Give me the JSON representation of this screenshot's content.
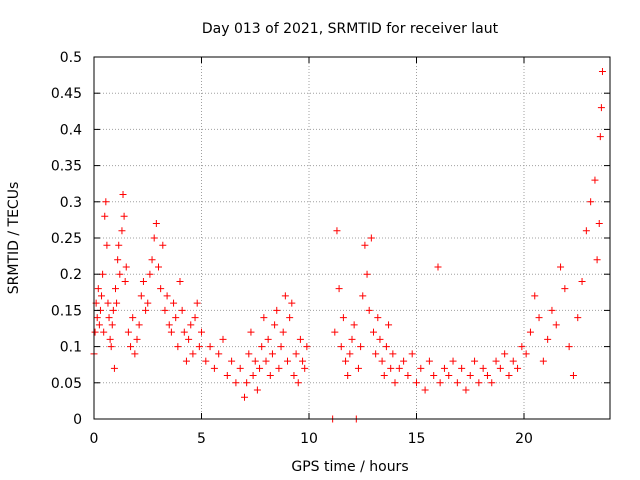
{
  "chart_data": {
    "type": "scatter",
    "title": "Day 013 of 2021, SRMTID for receiver laut",
    "xlabel": "GPS time / hours",
    "ylabel": "SRMTID / TECUs",
    "xlim": [
      0,
      24
    ],
    "ylim": [
      0,
      0.5
    ],
    "x_ticks": [
      0,
      5,
      10,
      15,
      20
    ],
    "y_ticks": [
      0,
      0.05,
      0.1,
      0.15,
      0.2,
      0.25,
      0.3,
      0.35,
      0.4,
      0.45,
      0.5
    ],
    "x_tick_labels": [
      "0",
      "5",
      "10",
      "15",
      "20"
    ],
    "y_tick_labels": [
      "0",
      "0.05",
      "0.1",
      "0.15",
      "0.2",
      "0.25",
      "0.3",
      "0.35",
      "0.4",
      "0.45",
      "0.5"
    ],
    "grid": true,
    "marker": "+",
    "color": "#ff0000",
    "series": [
      {
        "name": "SRMTID",
        "points": [
          [
            0.0,
            0.09
          ],
          [
            0.05,
            0.12
          ],
          [
            0.1,
            0.16
          ],
          [
            0.15,
            0.14
          ],
          [
            0.2,
            0.18
          ],
          [
            0.25,
            0.13
          ],
          [
            0.3,
            0.15
          ],
          [
            0.35,
            0.17
          ],
          [
            0.4,
            0.2
          ],
          [
            0.45,
            0.12
          ],
          [
            0.5,
            0.28
          ],
          [
            0.55,
            0.3
          ],
          [
            0.6,
            0.24
          ],
          [
            0.65,
            0.16
          ],
          [
            0.7,
            0.14
          ],
          [
            0.75,
            0.11
          ],
          [
            0.8,
            0.1
          ],
          [
            0.85,
            0.13
          ],
          [
            0.9,
            0.15
          ],
          [
            0.95,
            0.07
          ],
          [
            1.0,
            0.18
          ],
          [
            1.05,
            0.16
          ],
          [
            1.1,
            0.22
          ],
          [
            1.15,
            0.24
          ],
          [
            1.2,
            0.2
          ],
          [
            1.3,
            0.26
          ],
          [
            1.35,
            0.31
          ],
          [
            1.4,
            0.28
          ],
          [
            1.45,
            0.19
          ],
          [
            1.5,
            0.21
          ],
          [
            1.6,
            0.12
          ],
          [
            1.7,
            0.1
          ],
          [
            1.8,
            0.14
          ],
          [
            1.9,
            0.09
          ],
          [
            2.0,
            0.11
          ],
          [
            2.1,
            0.13
          ],
          [
            2.2,
            0.17
          ],
          [
            2.3,
            0.19
          ],
          [
            2.4,
            0.15
          ],
          [
            2.5,
            0.16
          ],
          [
            2.6,
            0.2
          ],
          [
            2.7,
            0.22
          ],
          [
            2.8,
            0.25
          ],
          [
            2.9,
            0.27
          ],
          [
            3.0,
            0.21
          ],
          [
            3.1,
            0.18
          ],
          [
            3.2,
            0.24
          ],
          [
            3.3,
            0.15
          ],
          [
            3.4,
            0.17
          ],
          [
            3.5,
            0.13
          ],
          [
            3.6,
            0.12
          ],
          [
            3.7,
            0.16
          ],
          [
            3.8,
            0.14
          ],
          [
            3.9,
            0.1
          ],
          [
            4.0,
            0.19
          ],
          [
            4.1,
            0.15
          ],
          [
            4.2,
            0.12
          ],
          [
            4.3,
            0.08
          ],
          [
            4.4,
            0.11
          ],
          [
            4.5,
            0.13
          ],
          [
            4.6,
            0.09
          ],
          [
            4.7,
            0.14
          ],
          [
            4.8,
            0.16
          ],
          [
            4.9,
            0.1
          ],
          [
            5.0,
            0.12
          ],
          [
            5.2,
            0.08
          ],
          [
            5.4,
            0.1
          ],
          [
            5.6,
            0.07
          ],
          [
            5.8,
            0.09
          ],
          [
            6.0,
            0.11
          ],
          [
            6.2,
            0.06
          ],
          [
            6.4,
            0.08
          ],
          [
            6.6,
            0.05
          ],
          [
            6.8,
            0.07
          ],
          [
            7.0,
            0.03
          ],
          [
            7.1,
            0.05
          ],
          [
            7.2,
            0.09
          ],
          [
            7.3,
            0.12
          ],
          [
            7.4,
            0.06
          ],
          [
            7.5,
            0.08
          ],
          [
            7.6,
            0.04
          ],
          [
            7.7,
            0.07
          ],
          [
            7.8,
            0.1
          ],
          [
            7.9,
            0.14
          ],
          [
            8.0,
            0.08
          ],
          [
            8.1,
            0.11
          ],
          [
            8.2,
            0.06
          ],
          [
            8.3,
            0.09
          ],
          [
            8.4,
            0.13
          ],
          [
            8.5,
            0.15
          ],
          [
            8.6,
            0.07
          ],
          [
            8.7,
            0.1
          ],
          [
            8.8,
            0.12
          ],
          [
            8.9,
            0.17
          ],
          [
            9.0,
            0.08
          ],
          [
            9.1,
            0.14
          ],
          [
            9.2,
            0.16
          ],
          [
            9.3,
            0.06
          ],
          [
            9.4,
            0.09
          ],
          [
            9.5,
            0.05
          ],
          [
            9.6,
            0.11
          ],
          [
            9.7,
            0.08
          ],
          [
            9.8,
            0.07
          ],
          [
            9.9,
            0.1
          ],
          [
            11.1,
            0.0
          ],
          [
            12.2,
            0.0
          ],
          [
            11.2,
            0.12
          ],
          [
            11.3,
            0.26
          ],
          [
            11.4,
            0.18
          ],
          [
            11.5,
            0.1
          ],
          [
            11.6,
            0.14
          ],
          [
            11.7,
            0.08
          ],
          [
            11.8,
            0.06
          ],
          [
            11.9,
            0.09
          ],
          [
            12.0,
            0.11
          ],
          [
            12.1,
            0.13
          ],
          [
            12.3,
            0.07
          ],
          [
            12.4,
            0.1
          ],
          [
            12.5,
            0.17
          ],
          [
            12.6,
            0.24
          ],
          [
            12.7,
            0.2
          ],
          [
            12.8,
            0.15
          ],
          [
            12.9,
            0.25
          ],
          [
            13.0,
            0.12
          ],
          [
            13.1,
            0.09
          ],
          [
            13.2,
            0.14
          ],
          [
            13.3,
            0.11
          ],
          [
            13.4,
            0.08
          ],
          [
            13.5,
            0.06
          ],
          [
            13.6,
            0.1
          ],
          [
            13.7,
            0.13
          ],
          [
            13.8,
            0.07
          ],
          [
            13.9,
            0.09
          ],
          [
            14.0,
            0.05
          ],
          [
            14.2,
            0.07
          ],
          [
            14.4,
            0.08
          ],
          [
            14.6,
            0.06
          ],
          [
            14.8,
            0.09
          ],
          [
            15.0,
            0.05
          ],
          [
            15.2,
            0.07
          ],
          [
            15.4,
            0.04
          ],
          [
            15.6,
            0.08
          ],
          [
            15.8,
            0.06
          ],
          [
            16.0,
            0.21
          ],
          [
            16.1,
            0.05
          ],
          [
            16.3,
            0.07
          ],
          [
            16.5,
            0.06
          ],
          [
            16.7,
            0.08
          ],
          [
            16.9,
            0.05
          ],
          [
            17.1,
            0.07
          ],
          [
            17.3,
            0.04
          ],
          [
            17.5,
            0.06
          ],
          [
            17.7,
            0.08
          ],
          [
            17.9,
            0.05
          ],
          [
            18.1,
            0.07
          ],
          [
            18.3,
            0.06
          ],
          [
            18.5,
            0.05
          ],
          [
            18.7,
            0.08
          ],
          [
            18.9,
            0.07
          ],
          [
            19.1,
            0.09
          ],
          [
            19.3,
            0.06
          ],
          [
            19.5,
            0.08
          ],
          [
            19.7,
            0.07
          ],
          [
            19.9,
            0.1
          ],
          [
            20.1,
            0.09
          ],
          [
            20.3,
            0.12
          ],
          [
            20.5,
            0.17
          ],
          [
            20.7,
            0.14
          ],
          [
            20.9,
            0.08
          ],
          [
            21.1,
            0.11
          ],
          [
            21.3,
            0.15
          ],
          [
            21.5,
            0.13
          ],
          [
            21.7,
            0.21
          ],
          [
            21.9,
            0.18
          ],
          [
            22.1,
            0.1
          ],
          [
            22.3,
            0.06
          ],
          [
            22.5,
            0.14
          ],
          [
            22.7,
            0.19
          ],
          [
            22.9,
            0.26
          ],
          [
            23.1,
            0.3
          ],
          [
            23.3,
            0.33
          ],
          [
            23.4,
            0.22
          ],
          [
            23.5,
            0.27
          ],
          [
            23.55,
            0.39
          ],
          [
            23.6,
            0.43
          ],
          [
            23.65,
            0.48
          ]
        ]
      }
    ]
  }
}
